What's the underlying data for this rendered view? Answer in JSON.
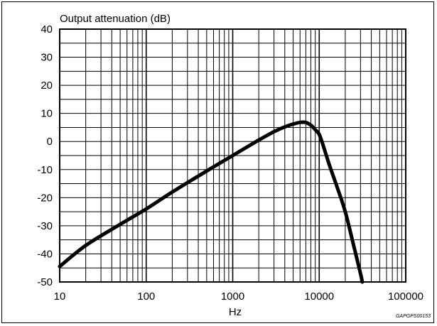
{
  "chart_data": {
    "type": "line",
    "title": "",
    "ylabel": "Output attenuation (dB)",
    "xlabel": "Hz",
    "x_scale": "log",
    "xlim": [
      10,
      100000
    ],
    "ylim": [
      -50,
      40
    ],
    "x_ticks": [
      10,
      100,
      1000,
      10000,
      100000
    ],
    "x_tick_labels": [
      "10",
      "100",
      "1000",
      "10000",
      "100000"
    ],
    "y_ticks": [
      40,
      30,
      20,
      10,
      0,
      -10,
      -20,
      -30,
      -40,
      -50
    ],
    "y_tick_labels": [
      "40",
      "30",
      "20",
      "10",
      "0",
      "-10",
      "-20",
      "-30",
      "-40",
      "-50"
    ],
    "grid": true,
    "series": [
      {
        "color": "#000000",
        "points": [
          [
            10,
            -44.5
          ],
          [
            20,
            -37
          ],
          [
            50,
            -29.5
          ],
          [
            100,
            -24
          ],
          [
            200,
            -18
          ],
          [
            500,
            -10.5
          ],
          [
            1000,
            -5
          ],
          [
            2000,
            0.5
          ],
          [
            3000,
            3.5
          ],
          [
            4000,
            5.2
          ],
          [
            5000,
            6.2
          ],
          [
            6000,
            6.8
          ],
          [
            7000,
            6.8
          ],
          [
            8000,
            5.8
          ],
          [
            9000,
            4.2
          ],
          [
            10000,
            2.5
          ],
          [
            11000,
            -1
          ],
          [
            13000,
            -8
          ],
          [
            16000,
            -16
          ],
          [
            20000,
            -25
          ],
          [
            25000,
            -37
          ],
          [
            30000,
            -47
          ],
          [
            31500,
            -50
          ]
        ]
      }
    ],
    "footnote": "GAPGPS00153"
  }
}
